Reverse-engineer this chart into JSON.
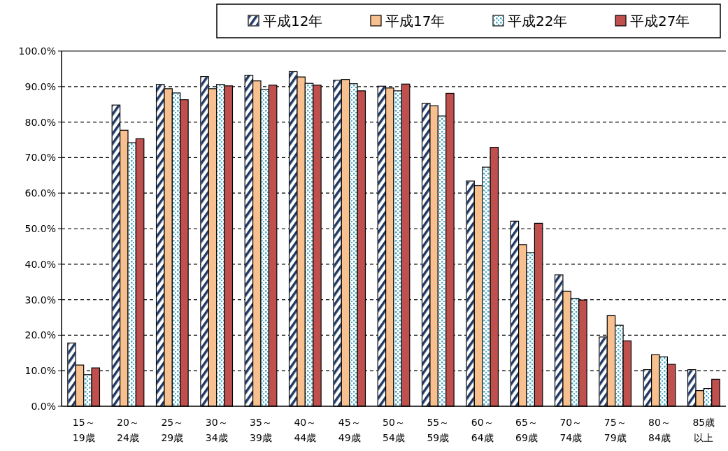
{
  "chart_data": {
    "type": "bar",
    "categories": [
      "15～19歳",
      "20～24歳",
      "25～29歳",
      "30～34歳",
      "35～39歳",
      "40～44歳",
      "45～49歳",
      "50～54歳",
      "55～59歳",
      "60～64歳",
      "65～69歳",
      "70～74歳",
      "75～79歳",
      "80～84歳",
      "85歳以上"
    ],
    "series": [
      {
        "name": "平成12年",
        "color": "#1f3864",
        "values": [
          17.8,
          84.8,
          90.6,
          92.8,
          93.2,
          94.2,
          91.8,
          90.1,
          85.3,
          63.4,
          52.1,
          37.0,
          19.5,
          10.3,
          10.3
        ]
      },
      {
        "name": "平成17年",
        "color": "#f9c08f",
        "values": [
          11.6,
          77.7,
          89.4,
          89.4,
          91.6,
          92.7,
          92.0,
          89.6,
          84.6,
          62.1,
          45.5,
          32.4,
          25.5,
          14.5,
          4.4
        ]
      },
      {
        "name": "平成22年",
        "color": "#4bacc6",
        "values": [
          8.9,
          74.2,
          88.2,
          90.6,
          89.2,
          90.9,
          90.8,
          88.8,
          81.7,
          67.3,
          43.2,
          30.4,
          22.8,
          13.9,
          5.0
        ]
      },
      {
        "name": "平成27年",
        "color": "#c0504d",
        "values": [
          10.8,
          75.3,
          86.3,
          90.2,
          90.4,
          90.4,
          88.8,
          90.7,
          88.1,
          72.9,
          51.5,
          29.9,
          18.4,
          11.8,
          7.6
        ]
      }
    ],
    "ylim": [
      0,
      100
    ],
    "yticks": [
      {
        "value": 0,
        "label": "0.0%"
      },
      {
        "value": 10,
        "label": "10.0%"
      },
      {
        "value": 20,
        "label": "20.0%"
      },
      {
        "value": 30,
        "label": "30.0%"
      },
      {
        "value": 40,
        "label": "40.0%"
      },
      {
        "value": 50,
        "label": "50.0%"
      },
      {
        "value": 60,
        "label": "60.0%"
      },
      {
        "value": 70,
        "label": "70.0%"
      },
      {
        "value": 80,
        "label": "80.0%"
      },
      {
        "value": 90,
        "label": "90.0%"
      },
      {
        "value": 100,
        "label": "100.0%"
      }
    ],
    "grid": "y",
    "legend": "top right"
  }
}
